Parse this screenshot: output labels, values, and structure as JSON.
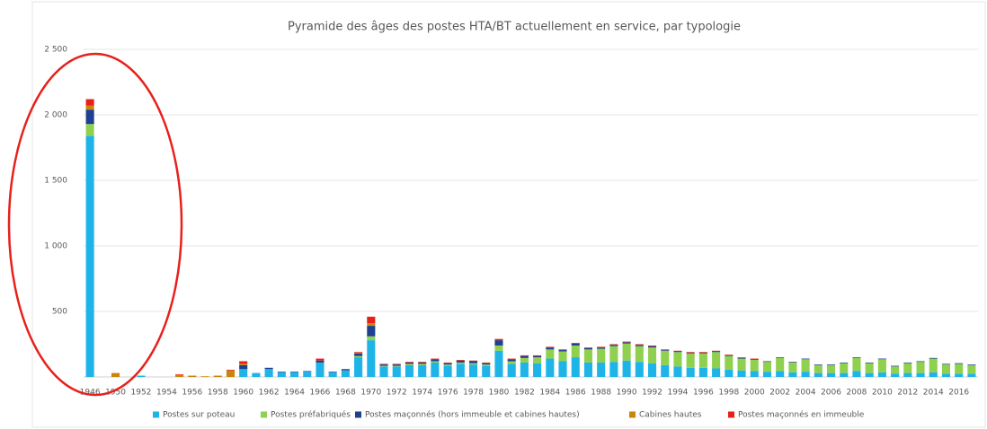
{
  "chart_data": {
    "type": "stacked_bar",
    "title": "Pyramide des âges des postes HTA/BT actuellement en service, par typologie",
    "categories": [
      "1946",
      null,
      "1950",
      null,
      "1952",
      null,
      "1954",
      null,
      "1956",
      null,
      "1958",
      null,
      "1960",
      null,
      "1962",
      null,
      "1964",
      null,
      "1966",
      null,
      "1968",
      null,
      "1970",
      null,
      "1972",
      null,
      "1974",
      null,
      "1976",
      null,
      "1978",
      null,
      "1980",
      null,
      "1982",
      null,
      "1984",
      null,
      "1986",
      null,
      "1988",
      null,
      "1990",
      null,
      "1992",
      null,
      "1994",
      null,
      "1996",
      null,
      "1998",
      null,
      "2000",
      null,
      "2002",
      null,
      "2004",
      null,
      "2006",
      null,
      "2008",
      null,
      "2010",
      null,
      "2012",
      null,
      "2014",
      null,
      "2016",
      null
    ],
    "series": [
      {
        "name": "Postes sur poteau",
        "color": "#1fb4e8",
        "values": [
          1840,
          0,
          0,
          0,
          10,
          0,
          0,
          0,
          0,
          0,
          0,
          0,
          60,
          30,
          60,
          35,
          35,
          40,
          110,
          35,
          50,
          150,
          280,
          80,
          80,
          90,
          90,
          110,
          85,
          100,
          95,
          85,
          200,
          100,
          110,
          105,
          140,
          120,
          150,
          110,
          110,
          115,
          125,
          115,
          105,
          90,
          80,
          70,
          70,
          65,
          55,
          50,
          45,
          40,
          45,
          35,
          40,
          30,
          30,
          30,
          45,
          30,
          35,
          25,
          30,
          30,
          35,
          25,
          25,
          25
        ]
      },
      {
        "name": "Postes préfabriqués",
        "color": "#8fd14f",
        "values": [
          90,
          0,
          0,
          0,
          0,
          0,
          0,
          0,
          0,
          0,
          0,
          0,
          0,
          0,
          0,
          0,
          0,
          0,
          0,
          0,
          0,
          10,
          30,
          5,
          5,
          10,
          10,
          10,
          10,
          10,
          10,
          10,
          40,
          20,
          35,
          45,
          70,
          75,
          90,
          100,
          105,
          120,
          130,
          120,
          120,
          110,
          110,
          110,
          110,
          125,
          105,
          90,
          85,
          75,
          100,
          75,
          95,
          60,
          60,
          75,
          100,
          75,
          100,
          55,
          75,
          85,
          105,
          70,
          75,
          65
        ]
      },
      {
        "name": "Postes maçonnés (hors immeuble et cabines hautes)",
        "color": "#1f3f8f",
        "values": [
          110,
          0,
          0,
          0,
          0,
          0,
          0,
          0,
          0,
          0,
          0,
          0,
          30,
          0,
          10,
          5,
          5,
          5,
          15,
          5,
          10,
          20,
          80,
          10,
          10,
          10,
          10,
          15,
          10,
          15,
          15,
          10,
          40,
          15,
          15,
          10,
          15,
          10,
          15,
          10,
          10,
          10,
          10,
          10,
          10,
          5,
          5,
          5,
          5,
          5,
          5,
          5,
          5,
          5,
          5,
          5,
          5,
          5,
          5,
          5,
          5,
          5,
          5,
          5,
          5,
          5,
          5,
          5,
          5,
          5
        ]
      },
      {
        "name": "Cabines hautes",
        "color": "#c8860a",
        "values": [
          30,
          0,
          30,
          0,
          0,
          0,
          0,
          15,
          10,
          5,
          10,
          50,
          10,
          0,
          0,
          0,
          0,
          0,
          0,
          0,
          0,
          5,
          20,
          0,
          0,
          0,
          0,
          0,
          0,
          0,
          0,
          0,
          0,
          0,
          0,
          0,
          0,
          0,
          0,
          0,
          0,
          0,
          0,
          0,
          0,
          0,
          0,
          0,
          0,
          0,
          0,
          0,
          0,
          0,
          0,
          0,
          0,
          0,
          0,
          0,
          0,
          0,
          0,
          0,
          0,
          0,
          0,
          0,
          0,
          0
        ]
      },
      {
        "name": "Postes maçonnés en immeuble",
        "color": "#e8201c",
        "values": [
          50,
          0,
          0,
          0,
          0,
          0,
          0,
          5,
          0,
          0,
          0,
          5,
          20,
          0,
          0,
          0,
          0,
          0,
          15,
          0,
          0,
          5,
          50,
          5,
          5,
          5,
          5,
          5,
          5,
          5,
          5,
          5,
          10,
          5,
          5,
          5,
          5,
          5,
          5,
          5,
          5,
          5,
          5,
          5,
          5,
          5,
          5,
          5,
          5,
          5,
          5,
          5,
          5,
          0,
          0,
          0,
          0,
          0,
          0,
          0,
          0,
          0,
          0,
          0,
          0,
          0,
          0,
          0,
          0,
          0
        ]
      }
    ],
    "ylim": [
      0,
      2500
    ],
    "yticks": [
      500,
      {
        "value": 1000,
        "label": "1 000"
      },
      {
        "value": 1500,
        "label": "1 500"
      },
      {
        "value": 2000,
        "label": "2 000"
      },
      {
        "value": 2500,
        "label": "2 500"
      }
    ],
    "grid": true,
    "legend": "bottom"
  }
}
